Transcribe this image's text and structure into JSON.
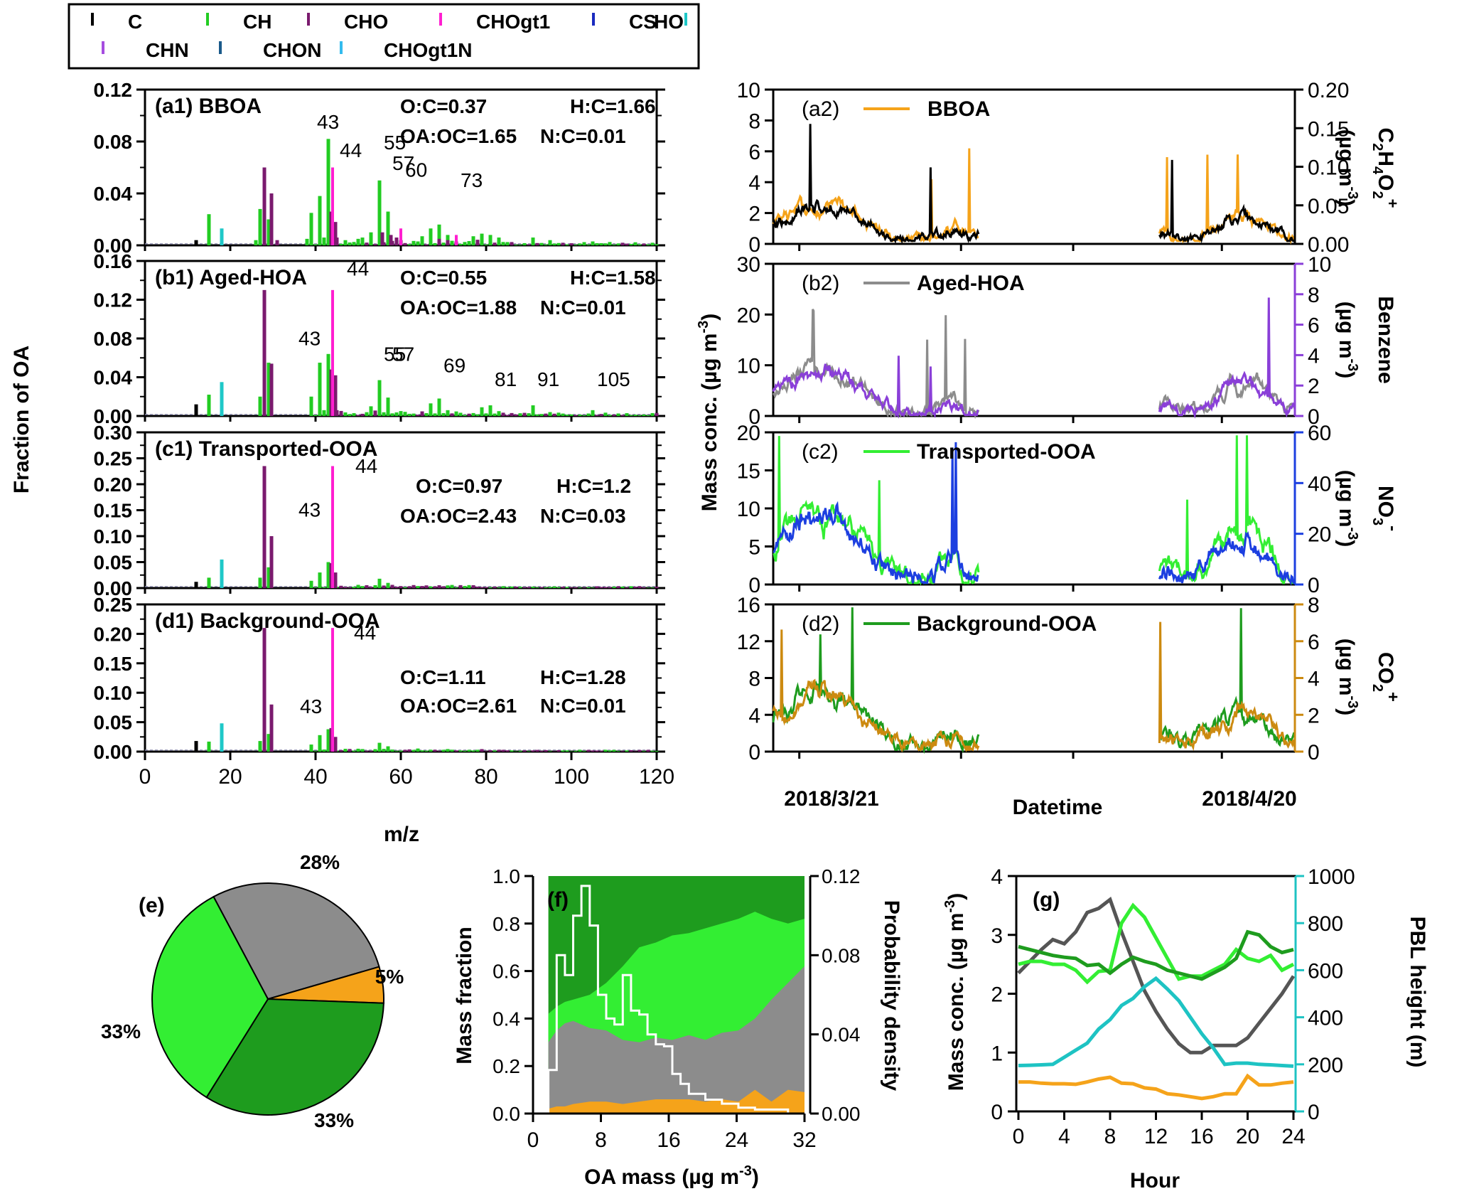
{
  "colors": {
    "C": "#000000",
    "CH": "#22cc22",
    "CHO": "#7a1a6e",
    "CHOgt1": "#ff1fd0",
    "CS": "#1a2bbf",
    "HO": "#1fc8c8",
    "CHN": "#a64de0",
    "CHON": "#1a5a8a",
    "CHOgt1N": "#33bbee",
    "BBOA": "#f5a31a",
    "AgedHOA": "#8c8c8c",
    "TOOA": "#33ee33",
    "BOOA": "#1e9c1e",
    "tracer_a2": "#000000",
    "tracer_b2": "#8a3fd8",
    "tracer_c2": "#1c3fe0",
    "tracer_d2": "#cc8a10",
    "pbl": "#1ec3c3",
    "hist": "#ffffff"
  },
  "legend": {
    "items": [
      {
        "key": "C",
        "label": "C"
      },
      {
        "key": "CH",
        "label": "CH"
      },
      {
        "key": "CHO",
        "label": "CHO"
      },
      {
        "key": "CHOgt1",
        "label": "CHOgt1"
      },
      {
        "key": "CS",
        "label": "CS"
      },
      {
        "key": "HO",
        "label": "HO"
      },
      {
        "key": "CHN",
        "label": "CHN"
      },
      {
        "key": "CHON",
        "label": "CHON"
      },
      {
        "key": "CHOgt1N",
        "label": "CHOgt1N"
      }
    ]
  },
  "ms_panels": {
    "ylabel": "Fraction of OA",
    "xlabel": "m/z",
    "xticks": [
      "0",
      "20",
      "40",
      "60",
      "80",
      "100",
      "120"
    ],
    "panels": [
      {
        "title": "(a1) BBOA",
        "ratios": [
          "O:C=0.37",
          "H:C=1.66",
          "OA:OC=1.65",
          "N:C=0.01"
        ],
        "yticks": [
          "0.00",
          "0.04",
          "0.08",
          "0.12"
        ],
        "peaks": [
          "43",
          "44",
          "55",
          "57",
          "60",
          "73"
        ]
      },
      {
        "title": "(b1) Aged-HOA",
        "ratios": [
          "O:C=0.55",
          "H:C=1.58",
          "OA:OC=1.88",
          "N:C=0.01"
        ],
        "yticks": [
          "0.00",
          "0.04",
          "0.08",
          "0.12",
          "0.16"
        ],
        "peaks": [
          "43",
          "44",
          "55",
          "57",
          "69",
          "81",
          "91",
          "105"
        ]
      },
      {
        "title": "(c1) Transported-OOA",
        "ratios": [
          "O:C=0.97",
          "H:C=1.2",
          "OA:OC=2.43",
          "N:C=0.03"
        ],
        "yticks": [
          "0.00",
          "0.05",
          "0.10",
          "0.15",
          "0.20",
          "0.25",
          "0.30"
        ],
        "peaks": [
          "43",
          "44"
        ]
      },
      {
        "title": "(d1) Background-OOA",
        "ratios": [
          "O:C=1.11",
          "H:C=1.28",
          "OA:OC=2.61",
          "N:C=0.01"
        ],
        "yticks": [
          "0.00",
          "0.05",
          "0.10",
          "0.15",
          "0.20",
          "0.25"
        ],
        "peaks": [
          "43",
          "44"
        ]
      }
    ]
  },
  "ts_panels": {
    "ylabel": "Mass conc. (µg m",
    "xlabel": "Datetime",
    "xticks": [
      "2018/3/21",
      "2018/4/20"
    ],
    "panels": [
      {
        "title": "(a2)",
        "legend": "BBOA",
        "left_ticks": [
          "0",
          "2",
          "4",
          "6",
          "8",
          "10"
        ],
        "right_ticks": [
          "0.00",
          "0.05",
          "0.10",
          "0.15",
          "0.20"
        ],
        "right_label": "C2H4O2+ (µg m-3)"
      },
      {
        "title": "(b2)",
        "legend": "Aged-HOA",
        "left_ticks": [
          "0",
          "10",
          "20",
          "30"
        ],
        "right_ticks": [
          "0",
          "2",
          "4",
          "6",
          "8",
          "10"
        ],
        "right_label": "Benzene (µg m-3)"
      },
      {
        "title": "(c2)",
        "legend": "Transported-OOA",
        "left_ticks": [
          "0",
          "5",
          "10",
          "15",
          "20"
        ],
        "right_ticks": [
          "0",
          "20",
          "40",
          "60"
        ],
        "right_label": "NO3- (µg m-3)"
      },
      {
        "title": "(d2)",
        "legend": "Background-OOA",
        "left_ticks": [
          "0",
          "4",
          "8",
          "12",
          "16"
        ],
        "right_ticks": [
          "0",
          "2",
          "4",
          "6",
          "8"
        ],
        "right_label": "CO2+ (µg m-3)"
      }
    ]
  },
  "pie": {
    "label": "(e)",
    "slices": [
      {
        "name": "Aged-HOA",
        "pct": 28,
        "label": "28%"
      },
      {
        "name": "BBOA",
        "pct": 5,
        "label": "5%"
      },
      {
        "name": "Background-OOA",
        "pct": 33,
        "label": "33%"
      },
      {
        "name": "Transported-OOA",
        "pct": 33,
        "label": "33%"
      }
    ]
  },
  "stack": {
    "label": "(f)",
    "ylabel": "Mass fraction",
    "y2label": "Probability density",
    "xlabel": "OA mass (µg m",
    "xticks": [
      "0",
      "8",
      "16",
      "24",
      "32"
    ],
    "yticks": [
      "0.0",
      "0.2",
      "0.4",
      "0.6",
      "0.8",
      "1.0"
    ],
    "y2ticks": [
      "0.00",
      "0.04",
      "0.08",
      "0.12"
    ]
  },
  "diurnal": {
    "label": "(g)",
    "ylabel": "Mass conc. (µg m",
    "y2label": "PBL height (m)",
    "xlabel": "Hour",
    "xticks": [
      "0",
      "4",
      "8",
      "12",
      "16",
      "20",
      "24"
    ],
    "yticks": [
      "0",
      "1",
      "2",
      "3",
      "4"
    ],
    "y2ticks": [
      "0",
      "200",
      "400",
      "600",
      "800",
      "1000"
    ]
  },
  "chart_data": [
    {
      "type": "bar",
      "id": "a1",
      "title": "(a1) BBOA",
      "xlabel": "m/z",
      "ylabel": "Fraction of OA",
      "xlim": [
        0,
        120
      ],
      "ylim": [
        0,
        0.12
      ],
      "series": [
        {
          "name": "C",
          "x": [
            12
          ],
          "values": [
            0.004
          ]
        },
        {
          "name": "CH",
          "x": [
            15,
            26,
            27,
            29,
            38,
            39,
            41,
            42,
            43,
            50,
            51,
            53,
            55,
            57,
            65,
            67,
            69,
            71,
            77,
            79,
            81,
            83,
            91,
            95,
            105,
            119
          ],
          "values": [
            0.024,
            0.004,
            0.028,
            0.02,
            0.005,
            0.025,
            0.038,
            0.006,
            0.082,
            0.005,
            0.006,
            0.01,
            0.05,
            0.026,
            0.007,
            0.013,
            0.016,
            0.008,
            0.007,
            0.009,
            0.008,
            0.006,
            0.006,
            0.004,
            0.003,
            0.002
          ]
        },
        {
          "name": "CHO",
          "x": [
            28,
            29,
            31,
            43,
            44,
            45,
            55,
            57,
            59,
            60,
            69,
            71,
            73
          ],
          "values": [
            0.06,
            0.04,
            0.004,
            0.026,
            0.018,
            0.006,
            0.01,
            0.008,
            0.006,
            0.004,
            0.005,
            0.004,
            0.003
          ]
        },
        {
          "name": "CHOgt1",
          "x": [
            44,
            60,
            73
          ],
          "values": [
            0.06,
            0.013,
            0.008
          ]
        },
        {
          "name": "HO",
          "x": [
            18
          ],
          "values": [
            0.013
          ]
        }
      ],
      "annotations": [
        "43",
        "44",
        "55",
        "57",
        "60",
        "73"
      ],
      "text": [
        "O:C=0.37",
        "H:C=1.66",
        "OA:OC=1.65",
        "N:C=0.01"
      ]
    },
    {
      "type": "bar",
      "id": "b1",
      "title": "(b1) Aged-HOA",
      "xlabel": "m/z",
      "ylabel": "Fraction of OA",
      "xlim": [
        0,
        120
      ],
      "ylim": [
        0,
        0.16
      ],
      "series": [
        {
          "name": "C",
          "x": [
            12
          ],
          "values": [
            0.012
          ]
        },
        {
          "name": "CH",
          "x": [
            15,
            27,
            29,
            39,
            41,
            42,
            43,
            53,
            55,
            57,
            67,
            69,
            71,
            79,
            81,
            83,
            91,
            95,
            105
          ],
          "values": [
            0.022,
            0.02,
            0.055,
            0.02,
            0.055,
            0.006,
            0.064,
            0.01,
            0.037,
            0.019,
            0.013,
            0.018,
            0.006,
            0.009,
            0.011,
            0.005,
            0.011,
            0.004,
            0.006
          ]
        },
        {
          "name": "CHO",
          "x": [
            28,
            29,
            43,
            44,
            45
          ],
          "values": [
            0.13,
            0.054,
            0.048,
            0.042,
            0.006
          ]
        },
        {
          "name": "CHOgt1",
          "x": [
            44
          ],
          "values": [
            0.13
          ]
        },
        {
          "name": "HO",
          "x": [
            18
          ],
          "values": [
            0.035
          ]
        }
      ],
      "annotations": [
        "43",
        "44",
        "55",
        "57",
        "69",
        "81",
        "91",
        "105"
      ],
      "text": [
        "O:C=0.55",
        "H:C=1.58",
        "OA:OC=1.88",
        "N:C=0.01"
      ]
    },
    {
      "type": "bar",
      "id": "c1",
      "title": "(c1) Transported-OOA",
      "xlabel": "m/z",
      "ylabel": "Fraction of OA",
      "xlim": [
        0,
        120
      ],
      "ylim": [
        0,
        0.3
      ],
      "series": [
        {
          "name": "C",
          "x": [
            12
          ],
          "values": [
            0.012
          ]
        },
        {
          "name": "CH",
          "x": [
            15,
            27,
            29,
            39,
            41,
            43,
            55,
            57
          ],
          "values": [
            0.02,
            0.02,
            0.04,
            0.014,
            0.03,
            0.05,
            0.018,
            0.01
          ]
        },
        {
          "name": "CHO",
          "x": [
            28,
            29,
            43,
            44
          ],
          "values": [
            0.235,
            0.1,
            0.048,
            0.03
          ]
        },
        {
          "name": "CHOgt1",
          "x": [
            44
          ],
          "values": [
            0.235
          ]
        },
        {
          "name": "HO",
          "x": [
            18
          ],
          "values": [
            0.055
          ]
        }
      ],
      "annotations": [
        "43",
        "44"
      ],
      "text": [
        "O:C=0.97",
        "H:C=1.2",
        "OA:OC=2.43",
        "N:C=0.03"
      ]
    },
    {
      "type": "bar",
      "id": "d1",
      "title": "(d1) Background-OOA",
      "xlabel": "m/z",
      "ylabel": "Fraction of OA",
      "xlim": [
        0,
        120
      ],
      "ylim": [
        0,
        0.25
      ],
      "series": [
        {
          "name": "C",
          "x": [
            12
          ],
          "values": [
            0.018
          ]
        },
        {
          "name": "CH",
          "x": [
            15,
            27,
            29,
            39,
            41,
            43,
            55,
            57
          ],
          "values": [
            0.017,
            0.018,
            0.03,
            0.012,
            0.028,
            0.038,
            0.015,
            0.009
          ]
        },
        {
          "name": "CHO",
          "x": [
            28,
            29,
            43,
            44
          ],
          "values": [
            0.21,
            0.08,
            0.04,
            0.025
          ]
        },
        {
          "name": "CHOgt1",
          "x": [
            44
          ],
          "values": [
            0.21
          ]
        },
        {
          "name": "HO",
          "x": [
            18
          ],
          "values": [
            0.048
          ]
        }
      ],
      "annotations": [
        "43",
        "44"
      ],
      "text": [
        "O:C=1.11",
        "H:C=1.28",
        "OA:OC=2.61",
        "N:C=0.01"
      ]
    },
    {
      "type": "pie",
      "id": "e",
      "categories": [
        "Aged-HOA",
        "BBOA",
        "Background-OOA",
        "Transported-OOA"
      ],
      "values": [
        28,
        5,
        33,
        33
      ]
    },
    {
      "type": "area",
      "id": "f",
      "xlabel": "OA mass (µg m-3)",
      "ylabel": "Mass fraction",
      "y2label": "Probability density",
      "xlim": [
        0,
        32
      ],
      "ylim": [
        0,
        1.0
      ],
      "y2lim": [
        0,
        0.12
      ],
      "x": [
        1,
        2,
        3,
        4,
        6,
        8,
        10,
        12,
        14,
        16,
        18,
        20,
        22,
        24,
        26,
        28,
        30,
        32
      ],
      "series": [
        {
          "name": "BBOA",
          "values": [
            0.02,
            0.03,
            0.03,
            0.04,
            0.05,
            0.05,
            0.04,
            0.05,
            0.06,
            0.06,
            0.06,
            0.05,
            0.06,
            0.05,
            0.1,
            0.05,
            0.1,
            0.09
          ]
        },
        {
          "name": "Aged-HOA",
          "values": [
            0.3,
            0.35,
            0.38,
            0.39,
            0.36,
            0.35,
            0.31,
            0.3,
            0.32,
            0.31,
            0.33,
            0.31,
            0.34,
            0.35,
            0.4,
            0.48,
            0.55,
            0.62
          ]
        },
        {
          "name": "Transported-OOA",
          "values": [
            0.42,
            0.45,
            0.47,
            0.48,
            0.5,
            0.55,
            0.62,
            0.7,
            0.72,
            0.75,
            0.76,
            0.78,
            0.8,
            0.82,
            0.85,
            0.82,
            0.8,
            0.82
          ]
        },
        {
          "name": "Background-OOA",
          "values": [
            1,
            1,
            1,
            1,
            1,
            1,
            1,
            1,
            1,
            1,
            1,
            1,
            1,
            1,
            1,
            1,
            1,
            1
          ]
        }
      ],
      "histogram": {
        "bin_edges": [
          1,
          2,
          3,
          4,
          5,
          6,
          7,
          8,
          9,
          10,
          11,
          12,
          13,
          14,
          15,
          16,
          17,
          18,
          20,
          22,
          24,
          26,
          28,
          30
        ],
        "density": [
          0.022,
          0.08,
          0.07,
          0.1,
          0.115,
          0.095,
          0.06,
          0.048,
          0.045,
          0.07,
          0.052,
          0.05,
          0.04,
          0.035,
          0.034,
          0.02,
          0.015,
          0.01,
          0.007,
          0.005,
          0.003,
          0.002,
          0.002
        ]
      }
    },
    {
      "type": "line",
      "id": "g",
      "xlabel": "Hour",
      "ylabel": "Mass conc. (µg m-3)",
      "y2label": "PBL height (m)",
      "xlim": [
        0,
        24
      ],
      "ylim": [
        0,
        4
      ],
      "y2lim": [
        0,
        1000
      ],
      "x": [
        0,
        1,
        2,
        3,
        4,
        5,
        6,
        7,
        8,
        9,
        10,
        11,
        12,
        13,
        14,
        15,
        16,
        17,
        18,
        19,
        20,
        21,
        22,
        23,
        24
      ],
      "series": [
        {
          "name": "Aged-HOA",
          "values": [
            2.35,
            2.55,
            2.75,
            2.92,
            2.85,
            3.05,
            3.38,
            3.45,
            3.6,
            3.05,
            2.55,
            2.05,
            1.7,
            1.4,
            1.15,
            1.0,
            1.0,
            1.12,
            1.12,
            1.12,
            1.25,
            1.5,
            1.75,
            2.0,
            2.3
          ]
        },
        {
          "name": "BBOA",
          "values": [
            0.5,
            0.5,
            0.48,
            0.47,
            0.47,
            0.46,
            0.5,
            0.55,
            0.58,
            0.48,
            0.47,
            0.4,
            0.38,
            0.3,
            0.28,
            0.25,
            0.22,
            0.25,
            0.3,
            0.3,
            0.6,
            0.45,
            0.45,
            0.48,
            0.5
          ]
        },
        {
          "name": "Transported-OOA",
          "values": [
            2.5,
            2.55,
            2.55,
            2.5,
            2.5,
            2.4,
            2.2,
            2.38,
            2.4,
            3.2,
            3.5,
            3.3,
            2.95,
            2.6,
            2.25,
            2.3,
            2.3,
            2.4,
            2.5,
            2.75,
            2.6,
            2.55,
            2.65,
            2.4,
            2.5
          ]
        },
        {
          "name": "Background-OOA",
          "values": [
            2.8,
            2.75,
            2.7,
            2.65,
            2.62,
            2.6,
            2.48,
            2.5,
            2.35,
            2.5,
            2.62,
            2.55,
            2.5,
            2.4,
            2.35,
            2.3,
            2.25,
            2.35,
            2.45,
            2.6,
            3.05,
            3.0,
            2.8,
            2.7,
            2.75
          ]
        },
        {
          "name": "PBL height",
          "axis": "right",
          "values": [
            195,
            196,
            198,
            200,
            230,
            260,
            290,
            350,
            390,
            450,
            480,
            530,
            565,
            520,
            470,
            400,
            330,
            270,
            200,
            205,
            205,
            200,
            198,
            195,
            192
          ]
        }
      ]
    }
  ]
}
